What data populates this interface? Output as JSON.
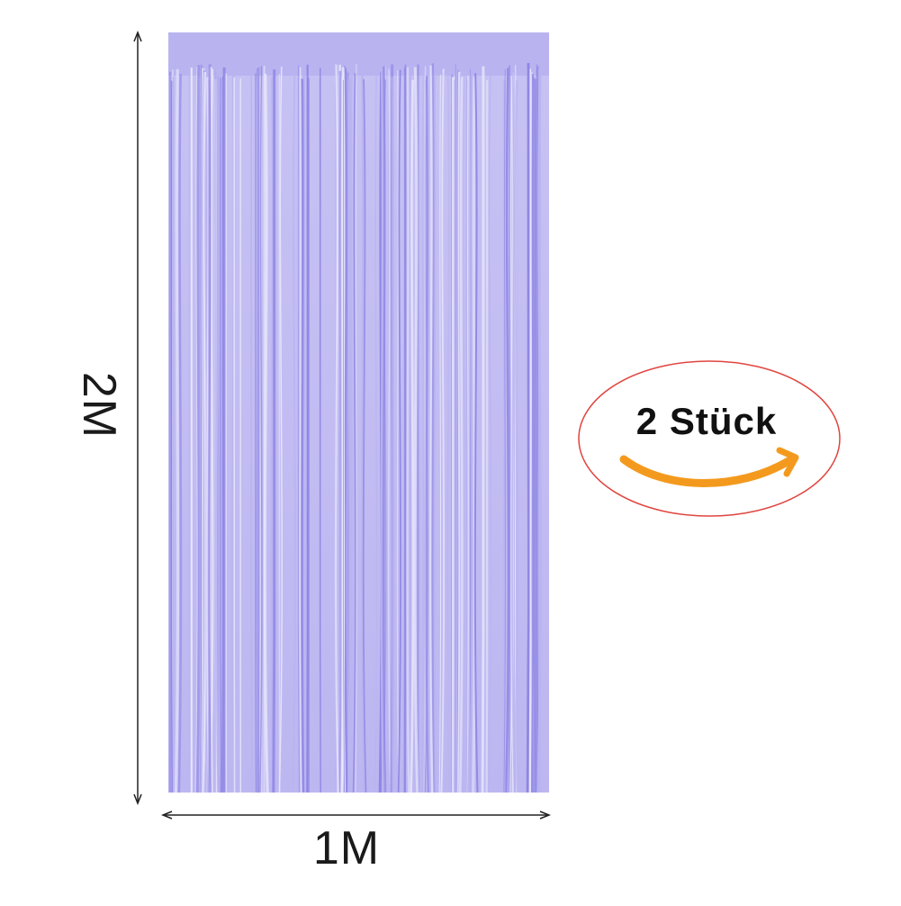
{
  "product": {
    "height_label": "2M",
    "width_label": "1M",
    "curtain_color": "#b9b4f0",
    "curtain_shade_color": "#8f86e4",
    "curtain_highlight_color": "#e8e6fb"
  },
  "badge": {
    "text": "2 Stück",
    "border_color": "#e0453f",
    "swoosh_color": "#f39a1e"
  }
}
